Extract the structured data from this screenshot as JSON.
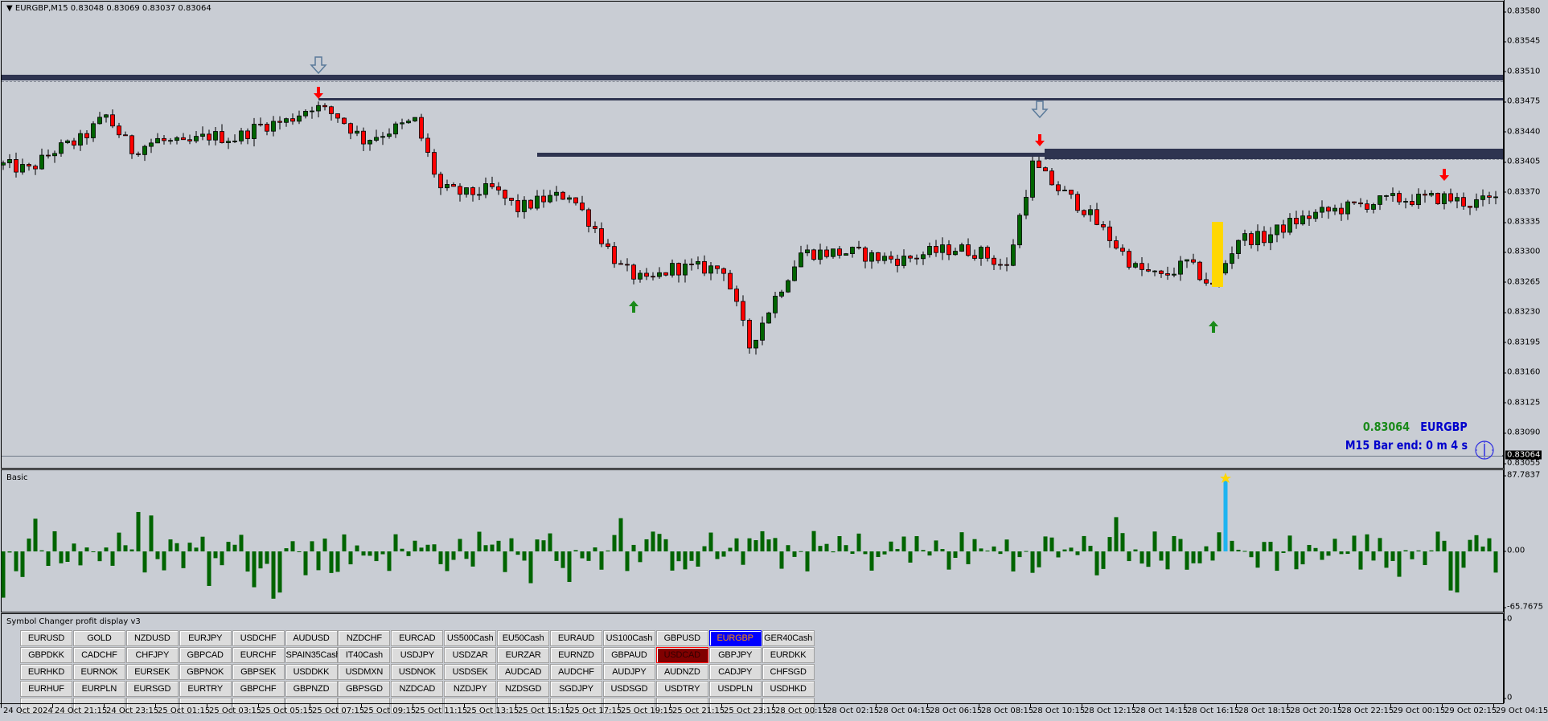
{
  "chart": {
    "title": "EURGBP,M15  0.83048 0.83069 0.83037 0.83064",
    "symbol": "EURGBP",
    "timeframe": "M15",
    "ohlc": {
      "open": "0.83048",
      "high": "0.83069",
      "low": "0.83037",
      "close": "0.83064"
    },
    "current_price": "0.83064",
    "info_price": "0.83064",
    "info_symbol": "EURGBP",
    "bar_end_text": "M15 Bar end: 0 m 4 s",
    "price_ticks": [
      "0.83580",
      "0.83545",
      "0.83510",
      "0.83475",
      "0.83440",
      "0.83405",
      "0.83370",
      "0.83335",
      "0.83300",
      "0.83265",
      "0.83230",
      "0.83195",
      "0.83160",
      "0.83125",
      "0.83090",
      "0.83055"
    ],
    "price_range": [
      0.83055,
      0.8358
    ],
    "price_path_every_4_bars": [
      0.83403,
      0.83397,
      0.8342,
      0.83432,
      0.8346,
      0.8342,
      0.83432,
      0.83426,
      0.83437,
      0.83434,
      0.83449,
      0.83454,
      0.83472,
      0.8346,
      0.83432,
      0.83443,
      0.83454,
      0.83375,
      0.83369,
      0.83375,
      0.83352,
      0.83363,
      0.83369,
      0.83329,
      0.83283,
      0.83266,
      0.83283,
      0.83283,
      0.83283,
      0.83192,
      0.83249,
      0.83301,
      0.83301,
      0.83301,
      0.83295,
      0.83293,
      0.83301,
      0.83306,
      0.83301,
      0.83283,
      0.83403,
      0.83375,
      0.83352,
      0.83318,
      0.83283,
      0.83272,
      0.83289,
      0.83261,
      0.83318,
      0.83318,
      0.83335,
      0.83346,
      0.83352,
      0.83358,
      0.83363,
      0.83363,
      0.83365,
      0.83358,
      0.83363
    ],
    "colors": {
      "background": "#c9cdd4",
      "bull": "#006400",
      "bear": "#ff0000",
      "zone": "#2e3450",
      "highlight": "#ffd700",
      "info_price": "#1a8a1a",
      "info_text": "#0000cc"
    },
    "icons": [
      "hollow-down-arrow-icon",
      "red-down-arrow-icon",
      "green-up-arrow-icon",
      "clock-icon"
    ]
  },
  "indicator": {
    "name": "Basic",
    "max_label": "87.7837",
    "zero_label": "0.00",
    "min_label": "-65.7675",
    "range": [
      -65.7675,
      87.7837
    ],
    "bar_color": "#006400",
    "signal_color": "#1eb4f0"
  },
  "symbol_panel": {
    "title": "Symbol Changer profit display v3",
    "scale_top": "0",
    "scale_bottom": "0",
    "rows": [
      [
        "EURUSD",
        "GOLD",
        "NZDUSD",
        "EURJPY",
        "USDCHF",
        "AUDUSD",
        "NZDCHF",
        "EURCAD",
        "US500Cash",
        "EU50Cash",
        "EURAUD",
        "US100Cash",
        "GBPUSD",
        "EURGBP",
        "GER40Cash"
      ],
      [
        "GBPDKK",
        "CADCHF",
        "CHFJPY",
        "GBPCAD",
        "EURCHF",
        "SPAIN35Cash",
        "IT40Cash",
        "USDJPY",
        "USDZAR",
        "EURZAR",
        "EURNZD",
        "GBPAUD",
        "USDCAD",
        "GBPJPY",
        "EURDKK"
      ],
      [
        "EURHKD",
        "EURNOK",
        "EURSEK",
        "GBPNOK",
        "GBPSEK",
        "USDDKK",
        "USDMXN",
        "USDNOK",
        "USDSEK",
        "AUDCAD",
        "AUDCHF",
        "AUDJPY",
        "AUDNZD",
        "CADJPY",
        "CHFSGD"
      ],
      [
        "EURHUF",
        "EURPLN",
        "EURSGD",
        "EURTRY",
        "GBPCHF",
        "GBPNZD",
        "GBPSGD",
        "NZDCAD",
        "NZDJPY",
        "NZDSGD",
        "SGDJPY",
        "USDSGD",
        "USDTRY",
        "USDPLN",
        "USDHKD"
      ],
      [
        "",
        "",
        "",
        "",
        "",
        "",
        "",
        "",
        "",
        "",
        "",
        "",
        "",
        "",
        ""
      ]
    ],
    "active_symbol": "EURGBP",
    "active_color": "#0000ff",
    "marked_symbol": "USDCAD",
    "marked_color": "#800000"
  },
  "time_axis": [
    "24 Oct 2024",
    "24 Oct 21:15",
    "24 Oct 23:15",
    "25 Oct 01:15",
    "25 Oct 03:15",
    "25 Oct 05:15",
    "25 Oct 07:15",
    "25 Oct 09:15",
    "25 Oct 11:15",
    "25 Oct 13:15",
    "25 Oct 15:15",
    "25 Oct 17:15",
    "25 Oct 19:15",
    "25 Oct 21:15",
    "25 Oct 23:15",
    "28 Oct 00:15",
    "28 Oct 02:15",
    "28 Oct 04:15",
    "28 Oct 06:15",
    "28 Oct 08:15",
    "28 Oct 10:15",
    "28 Oct 12:15",
    "28 Oct 14:15",
    "28 Oct 16:15",
    "28 Oct 18:15",
    "28 Oct 20:15",
    "28 Oct 22:15",
    "29 Oct 00:15",
    "29 Oct 02:15",
    "29 Oct 04:15"
  ]
}
